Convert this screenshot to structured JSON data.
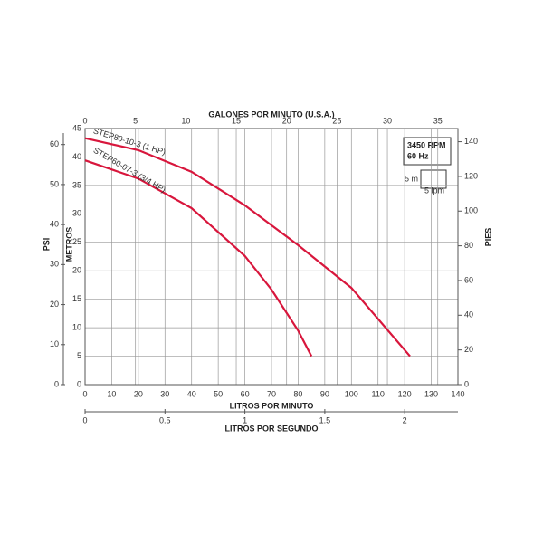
{
  "chart_data": {
    "type": "line",
    "xlabel": "LITROS POR MINUTO",
    "ylabel": "METROS",
    "xlim": [
      0,
      140
    ],
    "xticks": [
      0,
      10,
      20,
      30,
      40,
      50,
      60,
      70,
      80,
      90,
      100,
      110,
      120,
      130,
      140
    ],
    "ylim": [
      0,
      45
    ],
    "yticks": [
      0,
      5,
      10,
      15,
      20,
      25,
      30,
      35,
      40,
      45
    ],
    "grid": true,
    "top_axis": {
      "label": "GALONES POR MINUTO (U.S.A.)",
      "lim": [
        0,
        37
      ],
      "ticks": [
        0,
        5,
        10,
        15,
        20,
        25,
        30,
        35
      ]
    },
    "bottom_axis": {
      "label": "LITROS POR SEGUNDO",
      "lim": [
        0,
        2.333
      ],
      "ticks": [
        0,
        0.5,
        1,
        1.5,
        2
      ]
    },
    "left_axis": {
      "label": "PSI",
      "lim": [
        0,
        64
      ],
      "ticks": [
        0,
        10,
        20,
        30,
        40,
        50,
        60
      ]
    },
    "right_axis": {
      "label": "PIES",
      "lim": [
        0,
        147.6
      ],
      "ticks": [
        0,
        20,
        40,
        60,
        80,
        100,
        120,
        140
      ]
    },
    "series": [
      {
        "name": "STEP80-10-3  (1 HP)",
        "color": "#d8163c",
        "x": [
          0,
          20,
          40,
          60,
          80,
          100,
          122
        ],
        "values": [
          43.3,
          41.2,
          37.4,
          31.5,
          24.5,
          17,
          5
        ]
      },
      {
        "name": "STEP60-07-3  (3/4 HP)",
        "color": "#d8163c",
        "x": [
          0,
          20,
          40,
          60,
          70,
          80,
          85
        ],
        "values": [
          39.4,
          36.2,
          31,
          22.6,
          16.7,
          9.5,
          5
        ]
      }
    ],
    "note": {
      "rpm": "3450 RPM",
      "hz": "60 Hz",
      "scale_y": "5 m",
      "scale_x": "5 lpm"
    }
  }
}
